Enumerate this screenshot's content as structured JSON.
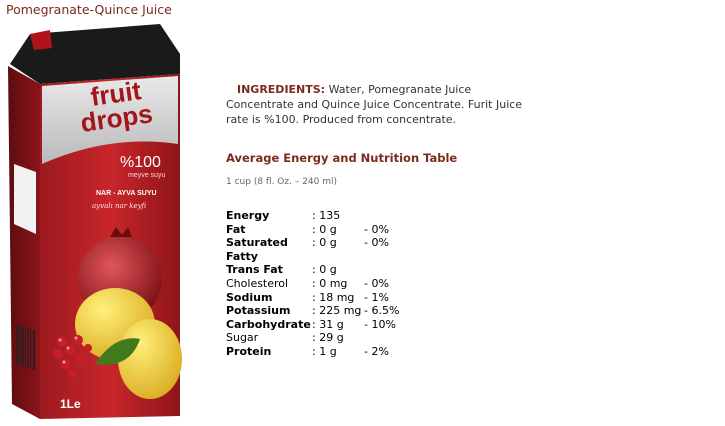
{
  "page": {
    "title": "Pomegranate-Quince Juice"
  },
  "product": {
    "brand_line1": "fruit",
    "brand_line2": "drops",
    "percent": "%100",
    "percent_sub": "meyve suyu",
    "flavor": "NAR - AYVA SUYU",
    "tagline": "ayvalı nar keyfi",
    "volume": "1Le"
  },
  "ingredients": {
    "label": "INGREDIENTS:",
    "text": "Water, Pomegranate Juice Concentrate and Quince Juice Concentrate. Furit Juice rate is  %100. Produced from concentrate."
  },
  "nutrition": {
    "title": "Average Energy and Nutrition Table",
    "serving": "1 cup (8 fl. Oz. – 240 ml)",
    "rows": [
      {
        "name": "Energy",
        "amount": ": 135",
        "daily": "",
        "bold": true
      },
      {
        "name": "Fat",
        "amount": ": 0 g",
        "daily": "- 0%",
        "bold": true
      },
      {
        "name": "Saturated Fatty",
        "amount": ": 0 g",
        "daily": "- 0%",
        "bold": true
      },
      {
        "name": "Trans Fat",
        "amount": ": 0 g",
        "daily": "",
        "bold": true
      },
      {
        "name": "Cholesterol",
        "amount": ": 0 mg",
        "daily": "- 0%",
        "bold": false
      },
      {
        "name": "Sodium",
        "amount": ": 18 mg",
        "daily": "- 1%",
        "bold": true
      },
      {
        "name": "Potassium",
        "amount": ": 225 mg",
        "daily": "- 6.5%",
        "bold": true
      },
      {
        "name": "Carbohydrate",
        "amount": ": 31 g",
        "daily": "- 10%",
        "bold": true
      },
      {
        "name": "Sugar",
        "amount": ": 29 g",
        "daily": "",
        "bold": false
      },
      {
        "name": "Protein",
        "amount": ": 1 g",
        "daily": "- 2%",
        "bold": true
      }
    ]
  }
}
